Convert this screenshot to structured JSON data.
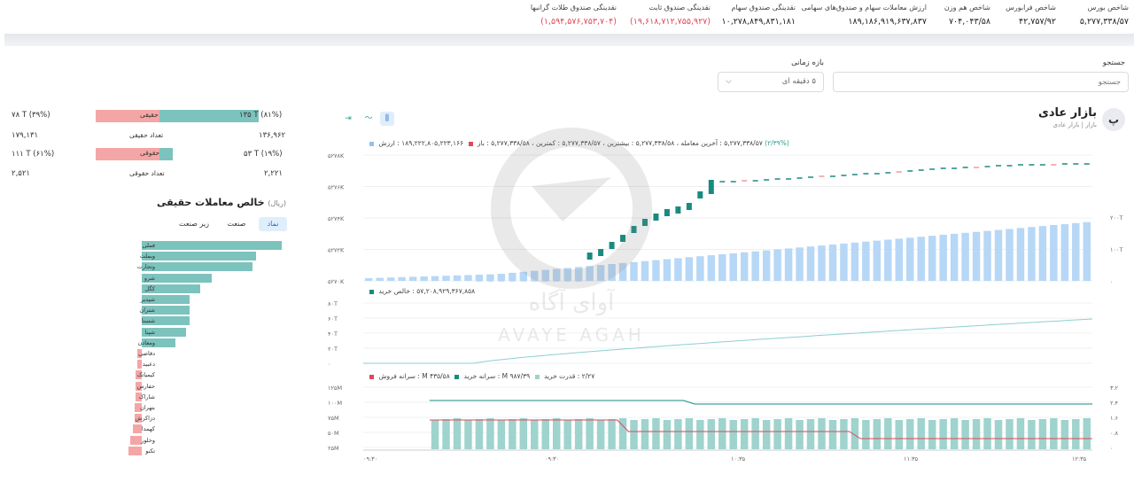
{
  "top_stats": [
    {
      "label": "شاخص بورس",
      "value": "۵,۲۷۷,۳۳۸/۵۷",
      "neg": false
    },
    {
      "label": "شاخص فرابورس",
      "value": "۴۲,۷۵۷/۹۲",
      "neg": false
    },
    {
      "label": "شاخص هم وزن",
      "value": "۷۰۴,۰۴۳/۵۸",
      "neg": false
    },
    {
      "label": "ارزش معاملات سهام و صندوق‌های سهامی",
      "value": "۱۸۹,۱۸۶,۹۱۹,۶۳۷,۸۳۷",
      "neg": false
    },
    {
      "label": "نقدینگی صندوق سهام",
      "value": "۱۰,۲۷۸,۸۴۹,۸۳۱,۱۸۱",
      "neg": false
    },
    {
      "label": "نقدینگی صندوق ثابت",
      "value": "(۱۹,۶۱۸,۷۱۲,۷۵۵,۹۲۷)",
      "neg": true
    },
    {
      "label": "نقدینگی صندوق طلا‌ت گرانبها",
      "value": "(۱,۵۹۴,۵۷۶,۷۵۳,۷۰۴)",
      "neg": true
    }
  ],
  "search": {
    "label": "جستجو",
    "placeholder": "جستجو"
  },
  "period": {
    "label": "بازه زمانی",
    "value": "۵ دقیقه ای"
  },
  "panel": {
    "badge": "پ",
    "title": "بازار عادی",
    "subtitle": "بازار | بازار عادی"
  },
  "legend1": {
    "pct": "(۲/۳۹%)",
    "text": "۵,۲۷۷,۳۳۸/۵۷ : آخرین معامله ، ۵,۲۷۷,۳۳۸/۵۸ : بیشترین ، ۵,۲۷۷,۳۳۸/۵۷ : کمترین ، ۵,۲۷۷,۳۳۸/۵۸ : باز",
    "value_label": "۱۸۹,۲۲۲,۸۰۵,۲۲۳,۱۶۶ : ارزش"
  },
  "legend2": {
    "text": "۵۷,۲۰۸,۹۲۹,۳۶۷,۸۵۸ : خالص خرید"
  },
  "legend3": {
    "power": "۲/۲۷ : قدرت خرید",
    "buy_per": "۹۸۷/۳۹ M : سرانه خرید",
    "sell_per": "۴۳۵/۵۸ M : سرانه فروش"
  },
  "chart_candle": {
    "y_ticks": [
      "۵۲۷۸K",
      "۵۲۷۶K",
      "۵۲۷۴K",
      "۵۲۷۲K",
      "۵۲۷۰K"
    ],
    "y2_ticks": [
      "۲۰۰T",
      "۱۰۰T",
      "۰"
    ]
  },
  "chart_net": {
    "y_ticks": [
      "۸۰T",
      "۶۰T",
      "۴۰T",
      "۲۰T",
      "۰"
    ]
  },
  "chart_power": {
    "y_ticks": [
      "۱۲۵M",
      "۱۰۰M",
      "۷۵M",
      "۵۰M",
      "۲۵M"
    ],
    "y2_ticks": [
      "۳.۲",
      "۲.۴",
      "۱.۶",
      "۰.۸",
      "۰"
    ],
    "x_ticks": [
      "۰۹:۳۰",
      "۰۹:۳۰",
      "۱۰:۳۵",
      "۱۱:۳۵",
      "۱۲:۳۵"
    ]
  },
  "left_rows": {
    "r1": {
      "left": "۷۸ T (۳۹%)",
      "bar": "حقیقی",
      "right": "۱۳۵ T (۸۱%)"
    },
    "r2": {
      "left": "۱۷۹,۱۳۱",
      "mid": "تعداد حقیقی",
      "right": "۱۳۶,۹۶۲"
    },
    "r3": {
      "left": "۱۱۱ T (۶۱%)",
      "bar": "حقوقی",
      "right": "۵۳ T (۱۹%)"
    },
    "r4": {
      "left": "۲,۵۲۱",
      "mid": "تعداد حقوقی",
      "right": "۲,۲۲۱"
    }
  },
  "net": {
    "title": "خالص معاملات حقیقی",
    "unit": "(ریال)",
    "tabs": [
      "نماد",
      "صنعت",
      "زیر صنعت"
    ],
    "items": [
      {
        "name": "فملی",
        "v": 0.96
      },
      {
        "name": "وبملت",
        "v": 0.78
      },
      {
        "name": "وتجارت",
        "v": 0.76
      },
      {
        "name": "شرو",
        "v": 0.48
      },
      {
        "name": "کگل",
        "v": 0.4
      },
      {
        "name": "شپدیر",
        "v": 0.33
      },
      {
        "name": "شتران",
        "v": 0.33
      },
      {
        "name": "شستا",
        "v": 0.33
      },
      {
        "name": "شپنا",
        "v": 0.3
      },
      {
        "name": "ومعادن",
        "v": 0.23
      },
      {
        "name": "دقاضی",
        "v": -0.03
      },
      {
        "name": "دعبید",
        "v": -0.03
      },
      {
        "name": "کیمیاتک",
        "v": -0.04
      },
      {
        "name": "حفارس",
        "v": -0.04
      },
      {
        "name": "شاراک",
        "v": -0.04
      },
      {
        "name": "بتهران",
        "v": -0.05
      },
      {
        "name": "دزاکرش",
        "v": -0.05
      },
      {
        "name": "کهمدا",
        "v": -0.06
      },
      {
        "name": "وخلور",
        "v": -0.08
      },
      {
        "name": "تکنو",
        "v": -0.09
      }
    ]
  },
  "watermark": {
    "fa": "آوای آگاه",
    "en": "AVAYE AGAH"
  },
  "colors": {
    "teal": "#1a8a80",
    "green_bar": "#7cc3bd",
    "red": "#f2a3a3",
    "blue_bar": "#b7d7f6",
    "power_bar": "#9fd3cd"
  }
}
